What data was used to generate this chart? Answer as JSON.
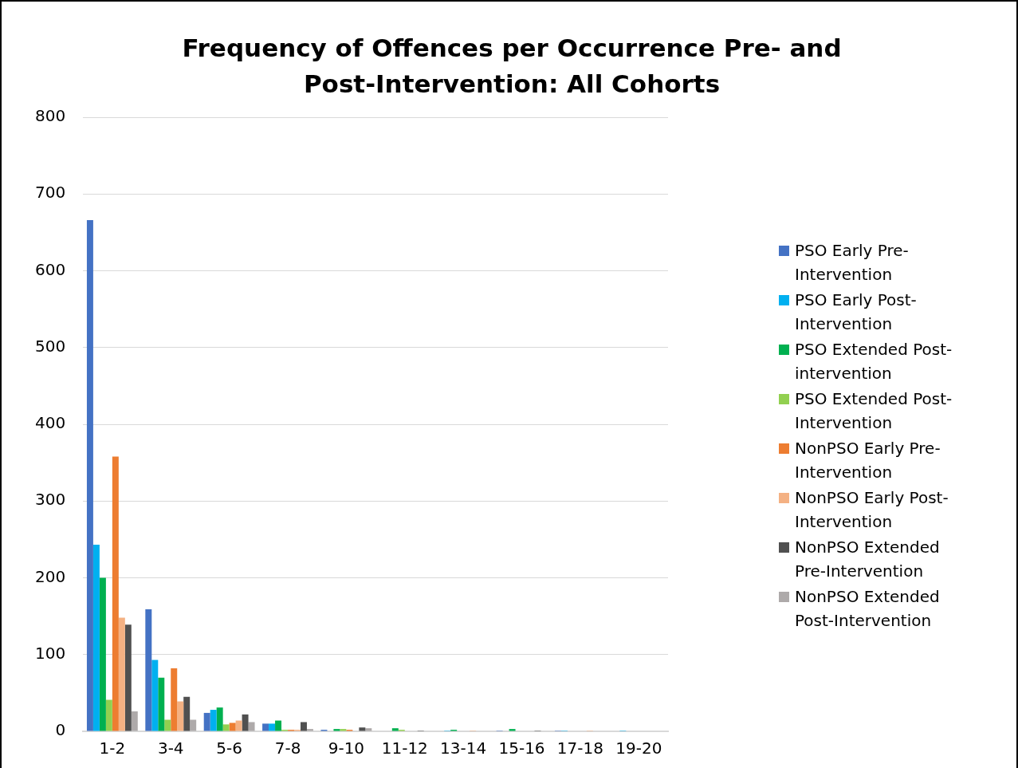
{
  "chart_data": {
    "type": "bar",
    "title": "Frequency of Offences per Occurrence Pre- and Post-Intervention: All Cohorts",
    "categories": [
      "1-2",
      "3-4",
      "5-6",
      "7-8",
      "9-10",
      "11-12",
      "13-14",
      "15-16",
      "17-18",
      "19-20"
    ],
    "series": [
      {
        "name": "PSO Early Pre-Intervention",
        "color": "#4472c4",
        "values": [
          666,
          159,
          24,
          10,
          2,
          0,
          0,
          1,
          1,
          0
        ]
      },
      {
        "name": "PSO Early Post-Intervention",
        "color": "#00b0f0",
        "values": [
          243,
          93,
          28,
          10,
          0,
          0,
          1,
          0,
          1,
          1
        ]
      },
      {
        "name": "PSO Extended Post-intervention",
        "color": "#00b050",
        "values": [
          200,
          70,
          31,
          14,
          3,
          4,
          2,
          3,
          0,
          0
        ]
      },
      {
        "name": "PSO Extended Post-Intervention",
        "color": "#92d050",
        "values": [
          41,
          15,
          9,
          2,
          3,
          2,
          0,
          0,
          0,
          0
        ]
      },
      {
        "name": "NonPSO Early Pre-Intervention",
        "color": "#ed7d31",
        "values": [
          358,
          82,
          11,
          2,
          2,
          0,
          0,
          0,
          0,
          0
        ]
      },
      {
        "name": "NonPSO Early Post-Intervention",
        "color": "#f4b183",
        "values": [
          148,
          39,
          14,
          2,
          0,
          0,
          1,
          0,
          1,
          0
        ]
      },
      {
        "name": "NonPSO Extended Pre-Intervention",
        "color": "#505050",
        "values": [
          139,
          45,
          22,
          12,
          5,
          1,
          0,
          1,
          0,
          0
        ]
      },
      {
        "name": "NonPSO Extended Post-Intervention",
        "color": "#aeaaaa",
        "values": [
          26,
          15,
          12,
          3,
          4,
          null,
          0,
          null,
          0,
          null
        ]
      }
    ],
    "ylim": [
      0,
      800
    ],
    "yticks": [
      0,
      100,
      200,
      300,
      400,
      500,
      600,
      700,
      800
    ],
    "grid": "y",
    "legend": "right"
  }
}
